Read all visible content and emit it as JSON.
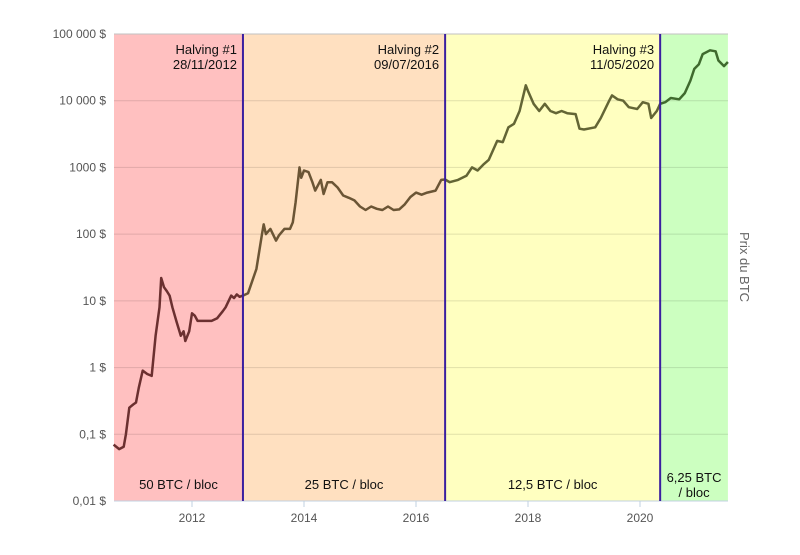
{
  "chart_data": {
    "type": "line",
    "title": "",
    "xlabel": "",
    "ylabel": "Prix du BTC",
    "y_scale": "log",
    "ylim": [
      0.01,
      100000
    ],
    "xlim": [
      2010.6,
      2021.57
    ],
    "grid": true,
    "x_ticks": [
      {
        "value": 2012,
        "label": "2012"
      },
      {
        "value": 2014,
        "label": "2014"
      },
      {
        "value": 2016,
        "label": "2016"
      },
      {
        "value": 2018,
        "label": "2018"
      },
      {
        "value": 2020,
        "label": "2020"
      }
    ],
    "y_ticks": [
      {
        "value": 0.01,
        "label": "0,01 $"
      },
      {
        "value": 0.1,
        "label": "0,1 $"
      },
      {
        "value": 1,
        "label": "1 $"
      },
      {
        "value": 10,
        "label": "10 $"
      },
      {
        "value": 100,
        "label": "100 $"
      },
      {
        "value": 1000,
        "label": "1000 $"
      },
      {
        "value": 10000,
        "label": "10 000 $"
      },
      {
        "value": 100000,
        "label": "100 000 $"
      }
    ],
    "eras": [
      {
        "start": 2010.6,
        "end": 2012.91,
        "label": "50 BTC / bloc",
        "fill": "#ffc0c0",
        "line": "#6b3030"
      },
      {
        "start": 2012.91,
        "end": 2016.52,
        "label": "25 BTC / bloc",
        "fill": "#ffe0c0",
        "line": "#6b5535"
      },
      {
        "start": 2016.52,
        "end": 2020.36,
        "label": "12,5 BTC / bloc",
        "fill": "#ffffc0",
        "line": "#636535"
      },
      {
        "start": 2020.36,
        "end": 2021.57,
        "label": "6,25 BTC / bloc",
        "fill": "#ccffc0",
        "line": "#3f6a2e"
      }
    ],
    "halvings": [
      {
        "x": 2012.91,
        "title": "Halving #1",
        "date": "28/11/2012"
      },
      {
        "x": 2016.52,
        "title": "Halving #2",
        "date": "09/07/2016"
      },
      {
        "x": 2020.36,
        "title": "Halving #3",
        "date": "11/05/2020"
      }
    ],
    "halving_color": "#3a1fa0",
    "series": [
      {
        "x": [
          2010.6,
          2010.7,
          2010.78,
          2010.82,
          2010.88,
          2010.95,
          2011.0,
          2011.05,
          2011.12,
          2011.2,
          2011.28,
          2011.35,
          2011.42,
          2011.45,
          2011.5,
          2011.55,
          2011.6,
          2011.65,
          2011.72,
          2011.8,
          2011.85,
          2011.88,
          2011.95,
          2012.0,
          2012.05,
          2012.1,
          2012.15,
          2012.25,
          2012.35,
          2012.45,
          2012.55,
          2012.6,
          2012.7,
          2012.75,
          2012.8,
          2012.85,
          2012.91,
          2013.0,
          2013.15,
          2013.25,
          2013.28,
          2013.32,
          2013.4,
          2013.5,
          2013.55,
          2013.65,
          2013.75,
          2013.8,
          2013.85,
          2013.92,
          2013.95,
          2014.0,
          2014.08,
          2014.15,
          2014.2,
          2014.3,
          2014.35,
          2014.42,
          2014.5,
          2014.6,
          2014.7,
          2014.8,
          2014.9,
          2015.0,
          2015.1,
          2015.2,
          2015.3,
          2015.4,
          2015.5,
          2015.6,
          2015.7,
          2015.8,
          2015.9,
          2016.0,
          2016.1,
          2016.2,
          2016.35,
          2016.45,
          2016.52,
          2016.6,
          2016.75,
          2016.9,
          2017.0,
          2017.1,
          2017.2,
          2017.3,
          2017.45,
          2017.55,
          2017.65,
          2017.75,
          2017.85,
          2017.96,
          2018.0,
          2018.1,
          2018.2,
          2018.3,
          2018.4,
          2018.5,
          2018.6,
          2018.7,
          2018.85,
          2018.92,
          2019.0,
          2019.2,
          2019.3,
          2019.45,
          2019.5,
          2019.6,
          2019.7,
          2019.8,
          2019.95,
          2020.05,
          2020.15,
          2020.2,
          2020.3,
          2020.36,
          2020.45,
          2020.55,
          2020.7,
          2020.8,
          2020.9,
          2020.97,
          2021.05,
          2021.12,
          2021.25,
          2021.35,
          2021.4,
          2021.5,
          2021.57
        ],
        "y": [
          0.07,
          0.06,
          0.065,
          0.1,
          0.25,
          0.28,
          0.3,
          0.5,
          0.9,
          0.8,
          0.75,
          3,
          8,
          22,
          16,
          14,
          12,
          8,
          5,
          3,
          3.5,
          2.5,
          3.5,
          6.5,
          6,
          5,
          5,
          5,
          5,
          5.5,
          7,
          8,
          12,
          11,
          12.5,
          11.5,
          12,
          13,
          30,
          100,
          140,
          100,
          120,
          80,
          95,
          120,
          120,
          150,
          300,
          1000,
          700,
          900,
          850,
          600,
          450,
          650,
          400,
          600,
          600,
          500,
          380,
          350,
          320,
          260,
          230,
          260,
          240,
          230,
          260,
          230,
          235,
          280,
          360,
          420,
          390,
          420,
          450,
          650,
          660,
          600,
          650,
          750,
          1000,
          900,
          1100,
          1300,
          2500,
          2400,
          4000,
          4500,
          7000,
          17000,
          14000,
          9000,
          7000,
          9000,
          7000,
          6500,
          7000,
          6500,
          6300,
          3800,
          3700,
          4000,
          5500,
          10000,
          12000,
          10500,
          10000,
          8000,
          7500,
          9500,
          9000,
          5500,
          7000,
          9000,
          9500,
          11000,
          10500,
          13000,
          20000,
          30000,
          35000,
          50000,
          57000,
          55000,
          40000,
          33000,
          38000
        ]
      }
    ]
  }
}
